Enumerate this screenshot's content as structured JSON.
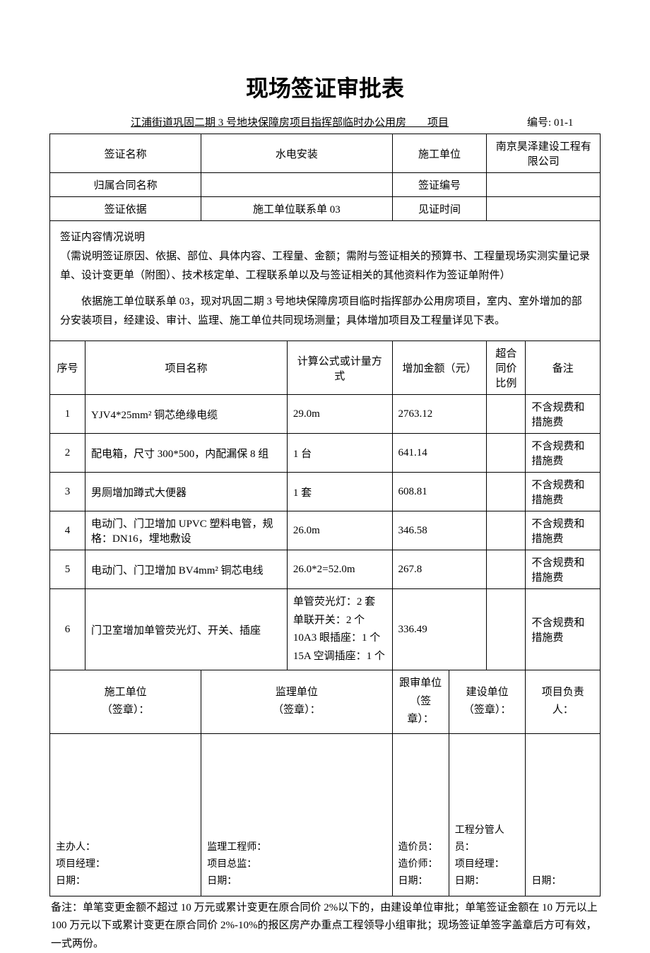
{
  "title": "现场签证审批表",
  "project_name": "江浦街道巩固二期 3 号地块保障房项目指挥部临时办公用房　　项目",
  "doc_number_label": "编号",
  "doc_number": "01-1",
  "header": {
    "visa_name_label": "签证名称",
    "visa_name": "水电安装",
    "construction_unit_label": "施工单位",
    "construction_unit": "南京昊泽建设工程有限公司",
    "contract_label": "归属合同名称",
    "contract": "",
    "visa_code_label": "签证编号",
    "visa_code": "",
    "basis_label": "签证依据",
    "basis": "施工单位联系单 03",
    "witness_time_label": "见证时间",
    "witness_time": ""
  },
  "description": {
    "heading": "签证内容情况说明",
    "note": "（需说明签证原因、依据、部位、具体内容、工程量、金额；需附与签证相关的预算书、工程量现场实测实量记录单、设计变更单（附图）、技术核定单、工程联系单以及与签证相关的其他资料作为签证单附件）",
    "body": "依据施工单位联系单 03，现对巩固二期 3 号地块保障房项目临时指挥部办公用房项目，室内、室外增加的部分安装项目，经建设、审计、监理、施工单位共同现场测量；具体增加项目及工程量详见下表。"
  },
  "table": {
    "columns": {
      "seq": "序号",
      "name": "项目名称",
      "formula": "计算公式或计量方式",
      "amount": "增加金额（元）",
      "ratio": "超合同价比例",
      "remark": "备注"
    },
    "rows": [
      {
        "seq": "1",
        "name": "YJV4*25mm² 铜芯绝缘电缆",
        "formula": "29.0m",
        "amount": "2763.12",
        "ratio": "",
        "remark": "不含规费和措施费"
      },
      {
        "seq": "2",
        "name": "配电箱，尺寸 300*500，内配漏保 8 组",
        "formula": "1 台",
        "amount": "641.14",
        "ratio": "",
        "remark": "不含规费和措施费"
      },
      {
        "seq": "3",
        "name": "男厕增加蹲式大便器",
        "formula": "1 套",
        "amount": "608.81",
        "ratio": "",
        "remark": "不含规费和措施费"
      },
      {
        "seq": "4",
        "name": "电动门、门卫增加 UPVC 塑料电管，规格：DN16，埋地敷设",
        "formula": "26.0m",
        "amount": "346.58",
        "ratio": "",
        "remark": "不含规费和措施费"
      },
      {
        "seq": "5",
        "name": "电动门、门卫增加 BV4mm² 铜芯电线",
        "formula": "26.0*2=52.0m",
        "amount": "267.8",
        "ratio": "",
        "remark": "不含规费和措施费"
      },
      {
        "seq": "6",
        "name": "门卫室增加单管荧光灯、开关、插座",
        "formula": "单管荧光灯：2 套\n单联开关：2 个\n10A3 眼插座：1 个\n15A 空调插座：1 个",
        "amount": "336.49",
        "ratio": "",
        "remark": "不含规费和措施费"
      }
    ]
  },
  "signatures": {
    "s1": {
      "header": "施工单位\n（签章）：",
      "lines": "主办人：\n项目经理：\n日期："
    },
    "s2": {
      "header": "监理单位\n（签章）：",
      "lines": "监理工程师：\n项目总监：\n日期："
    },
    "s3": {
      "header": "跟审单位\n（签章）：",
      "lines": "造价员：\n造价师：\n日期："
    },
    "s4": {
      "header": "建设单位\n（签章）：",
      "lines": "工程分管人员：\n项目经理：\n日期："
    },
    "s5": {
      "header": "项目负责人：",
      "lines": "日期："
    }
  },
  "footnote": "备注：单笔变更金额不超过 10 万元或累计变更在原合同价 2%以下的，由建设单位审批；单笔签证金额在 10 万元以上 100 万元以下或累计变更在原合同价 2%-10%的报区房产办重点工程领导小组审批；现场签证单签字盖章后方可有效，一式两份。",
  "style": {
    "page_bg": "#ffffff",
    "text_color": "#000000",
    "border_color": "#000000",
    "title_fontsize": 32,
    "body_fontsize": 15
  }
}
